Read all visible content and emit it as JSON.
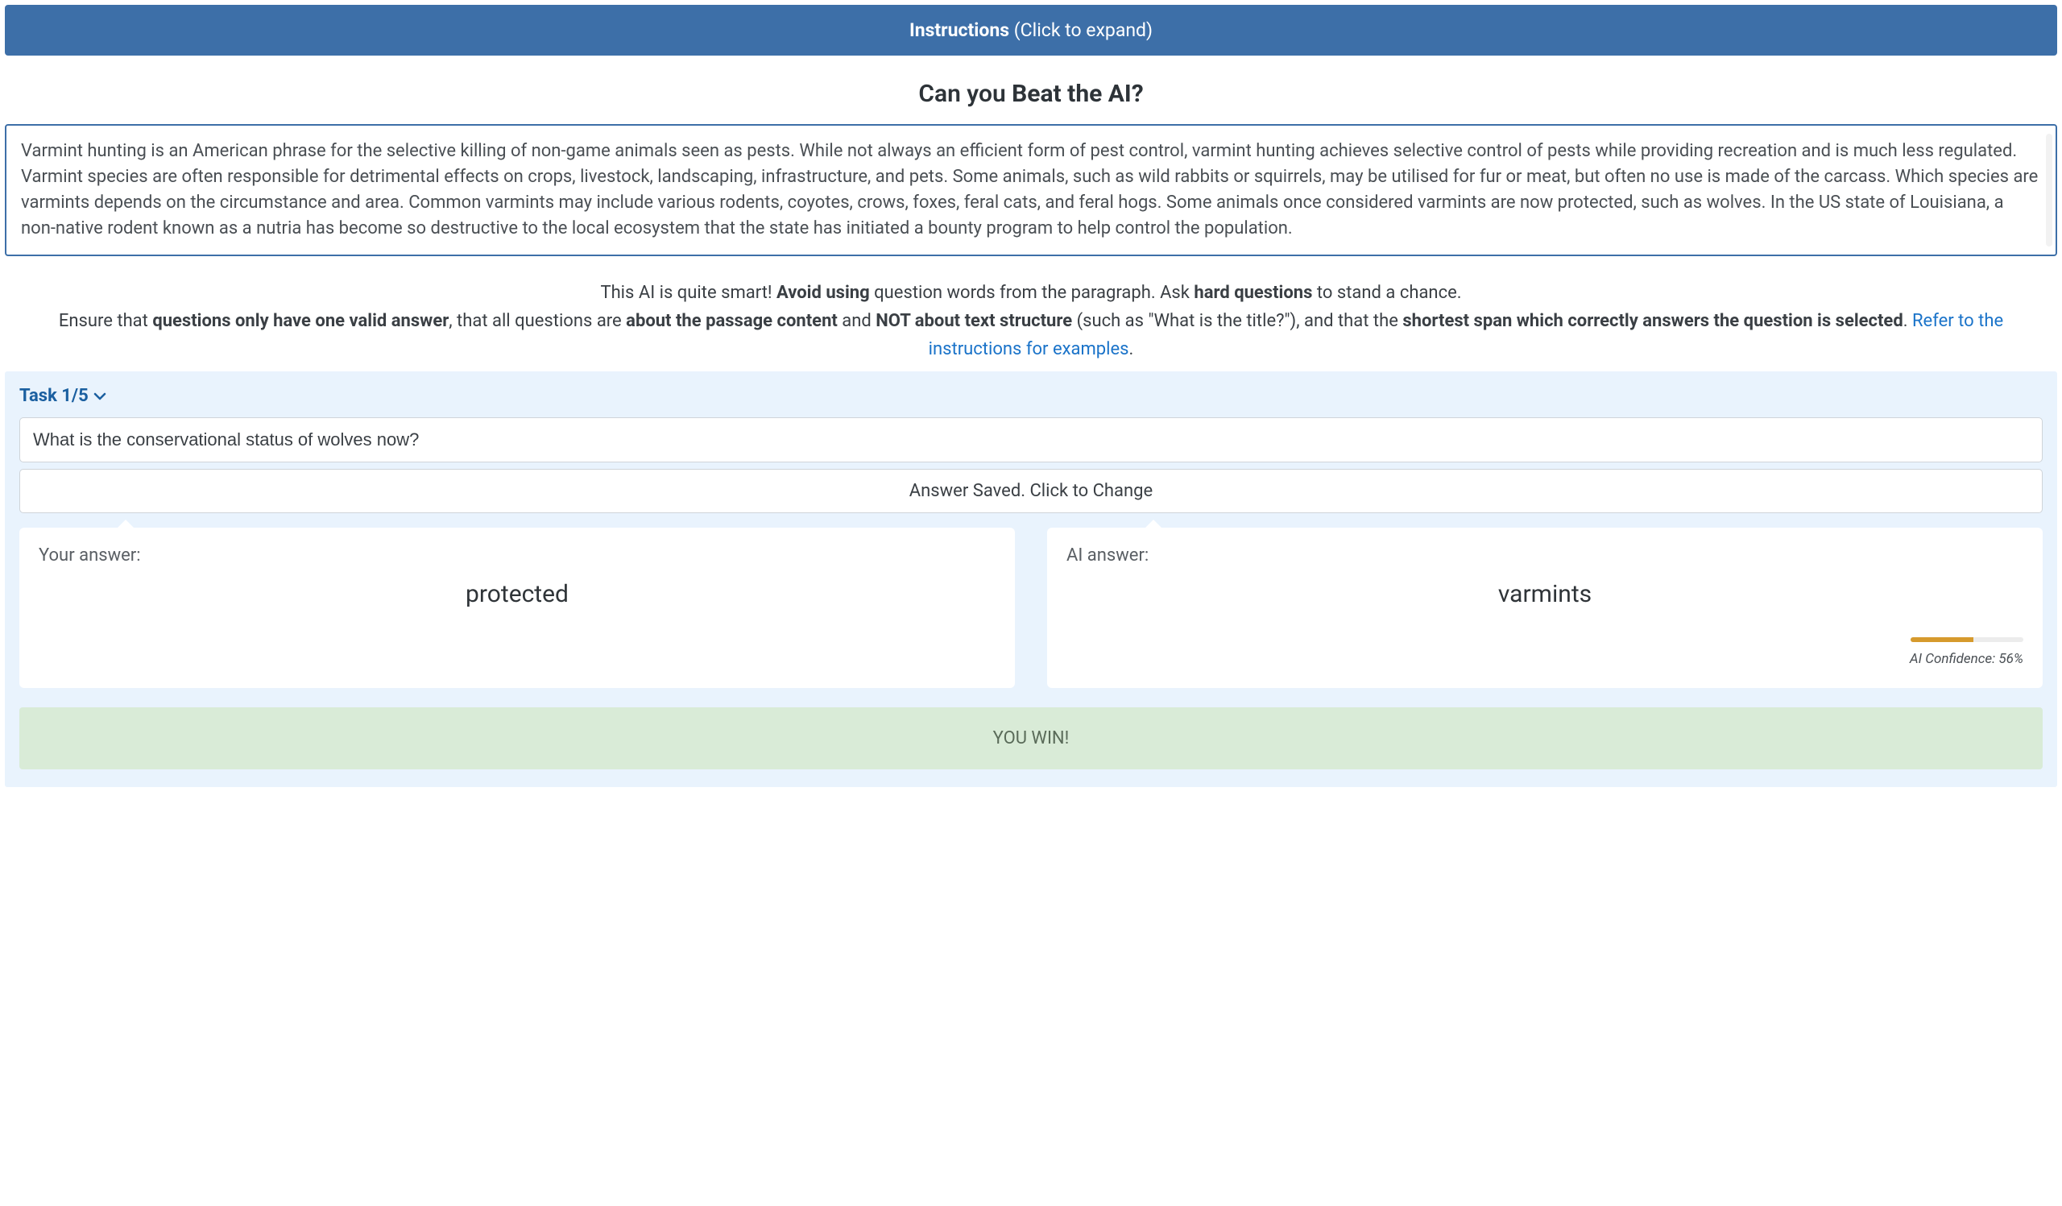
{
  "colors": {
    "header_bg": "#3d6fa8",
    "header_text": "#ffffff",
    "passage_border": "#3d6fa8",
    "task_panel_bg": "#e9f3fd",
    "task_header_text": "#1a5fa0",
    "link": "#1a73c9",
    "card_bg": "#ffffff",
    "result_bg": "#d9ebd7",
    "result_text": "#5a6b59",
    "confidence_fill": "#d69a2d",
    "confidence_track": "#ececec"
  },
  "instructions": {
    "label_bold": "Instructions",
    "label_rest": " (Click to expand)"
  },
  "heading": {
    "prefix": "Can you ",
    "bold": "Beat the AI?"
  },
  "passage": "Varmint hunting is an American phrase for the selective killing of non-game animals seen as pests. While not always an efficient form of pest control, varmint hunting achieves selective control of pests while providing recreation and is much less regulated. Varmint species are often responsible for detrimental effects on crops, livestock, landscaping, infrastructure, and pets. Some animals, such as wild rabbits or squirrels, may be utilised for fur or meat, but often no use is made of the carcass. Which species are varmints depends on the circumstance and area. Common varmints may include various rodents, coyotes, crows, foxes, feral cats, and feral hogs. Some animals once considered varmints are now protected, such as wolves. In the US state of Louisiana, a non-native rodent known as a nutria has become so destructive to the local ecosystem that the state has initiated a bounty program to help control the population.",
  "tips": {
    "line1_a": "This AI is quite smart! ",
    "line1_b": "Avoid using",
    "line1_c": " question words from the paragraph. Ask ",
    "line1_d": "hard questions",
    "line1_e": " to stand a chance.",
    "line2_a": "Ensure that ",
    "line2_b": "questions only have one valid answer",
    "line2_c": ", that all questions are ",
    "line2_d": "about the passage content",
    "line2_e": " and ",
    "line2_f": "NOT about text structure",
    "line2_g": " (such as \"What is the title?\"), and that the ",
    "line2_h": "shortest span which correctly answers the question is selected",
    "line2_i": ". ",
    "link": "Refer to the instructions for examples",
    "line2_end": "."
  },
  "task": {
    "header": "Task 1/5",
    "question": "What is the conservational status of wolves now?",
    "answer_saved": "Answer Saved. Click to Change",
    "your_answer_label": "Your answer:",
    "your_answer_value": "protected",
    "ai_answer_label": "AI answer:",
    "ai_answer_value": "varmints",
    "confidence_percent": 56,
    "confidence_text": "AI Confidence: 56%",
    "result": "YOU WIN!"
  }
}
